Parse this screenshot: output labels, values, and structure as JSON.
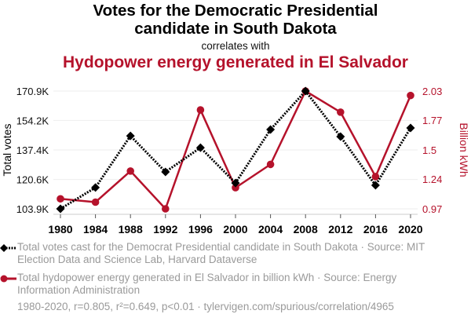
{
  "header": {
    "title": "Votes for the Democratic Presidential candidate in South Dakota",
    "title_line1": "Votes for the Democratic Presidential",
    "title_line2": "candidate in South Dakota",
    "connector": "correlates with",
    "title2": "Hydopower energy generated in El Salvador"
  },
  "colors": {
    "series1": "#000000",
    "series2": "#b5122b",
    "grid": "#eeeeee",
    "axis_text": "#111111",
    "muted_text": "#9a9a9a"
  },
  "chart_data": {
    "type": "line",
    "title": "Votes for the Democratic Presidential candidate in South Dakota correlates with Hydopower energy generated in El Salvador",
    "x": [
      1980,
      1984,
      1988,
      1992,
      1996,
      2000,
      2004,
      2008,
      2012,
      2016,
      2020
    ],
    "x_tick_labels": [
      "1980",
      "1984",
      "1988",
      "1992",
      "1996",
      "2000",
      "2004",
      "2008",
      "2012",
      "2016",
      "2020"
    ],
    "xlabel": "",
    "ylabel_left": "Total votes",
    "ylabel_right": "Billion kWh",
    "ylim_left": [
      103.9,
      170.9
    ],
    "ylim_right": [
      0.97,
      2.03
    ],
    "y_left_ticks": [
      103.9,
      120.6,
      137.4,
      154.2,
      170.9
    ],
    "y_left_tick_labels": [
      "103.9K",
      "120.6K",
      "137.4K",
      "154.2K",
      "170.9K"
    ],
    "y_right_ticks": [
      0.97,
      1.24,
      1.5,
      1.77,
      2.03
    ],
    "y_right_tick_labels": [
      "0.97",
      "1.24",
      "1.5",
      "1.77",
      "2.03"
    ],
    "grid": true,
    "series": [
      {
        "name": "Total votes cast for the Democrat Presidential candidate in South Dakota",
        "axis": "left",
        "unit": "thousand votes",
        "style": "dotted-line-diamond",
        "values": [
          103.9,
          116.0,
          145.4,
          124.9,
          138.7,
          118.6,
          149.0,
          170.9,
          145.0,
          117.3,
          149.9
        ]
      },
      {
        "name": "Total hydopower energy generated in El Salvador in billion kWh",
        "axis": "right",
        "unit": "billion kWh",
        "style": "solid-line-circle",
        "values": [
          1.06,
          1.03,
          1.31,
          0.97,
          1.86,
          1.16,
          1.37,
          2.03,
          1.84,
          1.26,
          1.99
        ]
      }
    ],
    "legend_position": "bottom-left"
  },
  "legend": {
    "items": [
      {
        "label": "Total votes cast for the Democrat Presidential candidate in South Dakota · Source: MIT Election Data and Science Lab, Harvard Dataverse"
      },
      {
        "label": "Total hydopower energy generated in El Salvador in billion kWh · Source: Energy Information Administration"
      }
    ]
  },
  "footer": {
    "text": "1980-2020, r=0.805, r²=0.649, p<0.01 · tylervigen.com/spurious/correlation/4965"
  }
}
